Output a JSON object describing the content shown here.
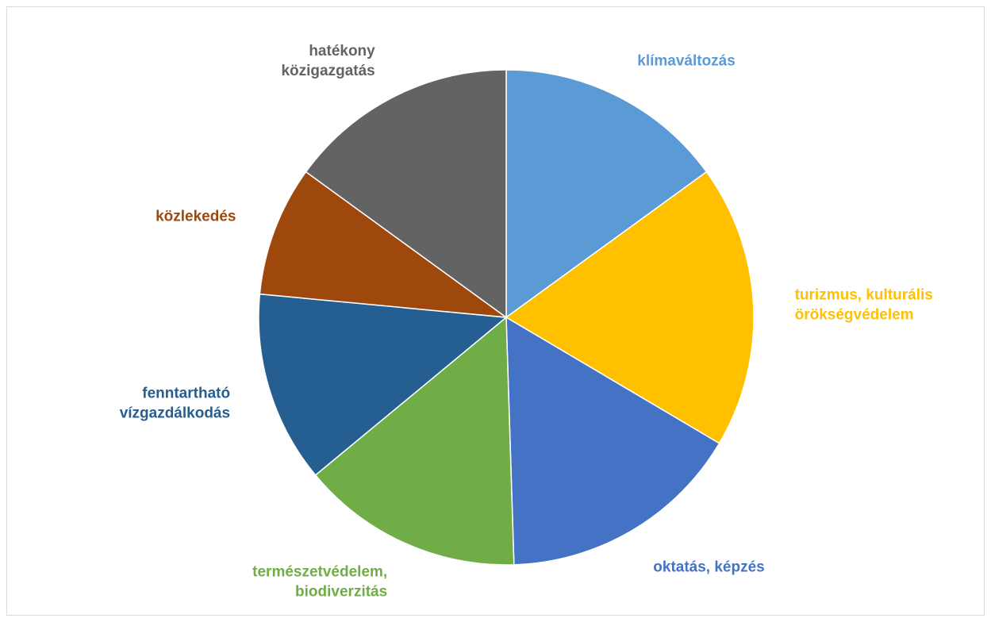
{
  "chart_data": {
    "type": "pie",
    "title": "",
    "slices": [
      {
        "label": [
          "klímaváltozás"
        ],
        "value": 15,
        "color": "#5b9bd5"
      },
      {
        "label": [
          "turizmus, kulturális",
          "örökségvédelem"
        ],
        "value": 18.5,
        "color": "#ffc000"
      },
      {
        "label": [
          "oktatás, képzés"
        ],
        "value": 16,
        "color": "#4472c4"
      },
      {
        "label": [
          "természetvédelem,",
          "biodiverzitás"
        ],
        "value": 14.5,
        "color": "#70ad47"
      },
      {
        "label": [
          "fenntartható",
          "vízgazdálkodás"
        ],
        "value": 12.5,
        "color": "#255e91"
      },
      {
        "label": [
          "közlekedés"
        ],
        "value": 8.5,
        "color": "#9e480e"
      },
      {
        "label": [
          "hatékony",
          "közigazgatás"
        ],
        "value": 15,
        "color": "#636363"
      }
    ],
    "start_angle": "12 o'clock",
    "direction": "clockwise",
    "legend": "none (labels outside slices)"
  }
}
